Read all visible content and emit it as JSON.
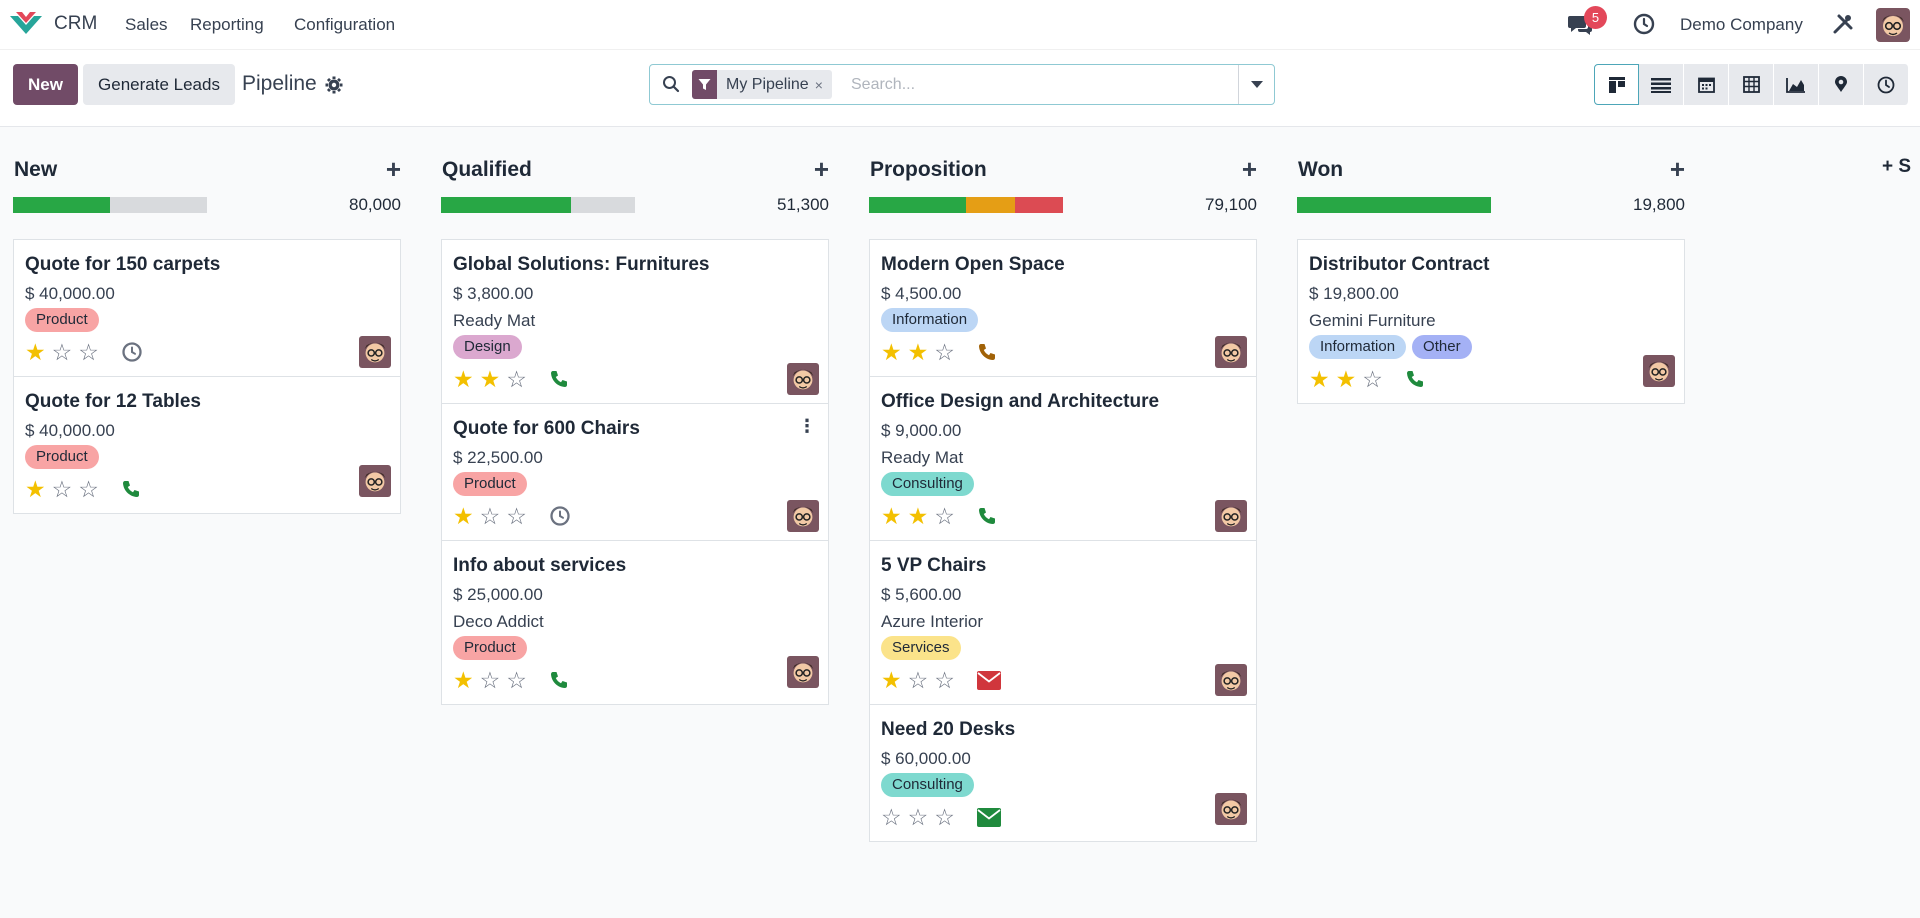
{
  "navbar": {
    "app_name": "CRM",
    "menu": [
      "Sales",
      "Reporting",
      "Configuration"
    ],
    "chat_count": "5",
    "company": "Demo Company"
  },
  "control": {
    "new_label": "New",
    "generate_label": "Generate Leads",
    "breadcrumb": "Pipeline",
    "facet": "My Pipeline",
    "facet_remove": "×",
    "search_placeholder": "Search..."
  },
  "colors": {
    "primary": "#714b67",
    "green": "#28a745",
    "orange": "#e59e15",
    "red": "#dc4b53"
  },
  "stages": [
    {
      "name": "New",
      "total": "80,000",
      "progress": [
        {
          "color": "#28a745",
          "pct": 50
        }
      ],
      "cards": [
        {
          "title": "Quote for 150 carpets",
          "amount": "$ 40,000.00",
          "company": "",
          "tags": [
            {
              "label": "Product",
              "color": "#f8a4a4"
            }
          ],
          "stars": 1,
          "activity": "clock-icon",
          "activity_color": "#6b7280"
        },
        {
          "title": "Quote for 12 Tables",
          "amount": "$ 40,000.00",
          "company": "",
          "tags": [
            {
              "label": "Product",
              "color": "#f8a4a4"
            }
          ],
          "stars": 1,
          "activity": "phone-icon",
          "activity_color": "#1f8a3d"
        }
      ]
    },
    {
      "name": "Qualified",
      "total": "51,300",
      "progress": [
        {
          "color": "#28a745",
          "pct": 67
        }
      ],
      "cards": [
        {
          "title": "Global Solutions: Furnitures",
          "amount": "$ 3,800.00",
          "company": "Ready Mat",
          "tags": [
            {
              "label": "Design",
              "color": "#dba8cf"
            }
          ],
          "stars": 2,
          "activity": "phone-icon",
          "activity_color": "#1f8a3d"
        },
        {
          "title": "Quote for 600 Chairs",
          "amount": "$ 22,500.00",
          "company": "",
          "tags": [
            {
              "label": "Product",
              "color": "#f8a4a4"
            }
          ],
          "stars": 1,
          "activity": "clock-icon",
          "activity_color": "#6b7280",
          "menu": true
        },
        {
          "title": "Info about services",
          "amount": "$ 25,000.00",
          "company": "Deco Addict",
          "tags": [
            {
              "label": "Product",
              "color": "#f8a4a4"
            }
          ],
          "stars": 1,
          "activity": "phone-icon",
          "activity_color": "#1f8a3d"
        }
      ]
    },
    {
      "name": "Proposition",
      "total": "79,100",
      "progress": [
        {
          "color": "#28a745",
          "pct": 50
        },
        {
          "color": "#e59e15",
          "pct": 25
        },
        {
          "color": "#dc4b53",
          "pct": 25
        }
      ],
      "cards": [
        {
          "title": "Modern Open Space",
          "amount": "$ 4,500.00",
          "company": "",
          "tags": [
            {
              "label": "Information",
              "color": "#bcd6f5"
            }
          ],
          "stars": 2,
          "activity": "phone-icon",
          "activity_color": "#a16207"
        },
        {
          "title": "Office Design and Architecture",
          "amount": "$ 9,000.00",
          "company": "Ready Mat",
          "tags": [
            {
              "label": "Consulting",
              "color": "#7ed9cf"
            }
          ],
          "stars": 2,
          "activity": "phone-icon",
          "activity_color": "#1f8a3d"
        },
        {
          "title": "5 VP Chairs",
          "amount": "$ 5,600.00",
          "company": "Azure Interior",
          "tags": [
            {
              "label": "Services",
              "color": "#fbe38a"
            }
          ],
          "stars": 1,
          "activity": "envelope-icon",
          "activity_color": "#d0363c"
        },
        {
          "title": "Need 20 Desks",
          "amount": "$ 60,000.00",
          "company": "",
          "tags": [
            {
              "label": "Consulting",
              "color": "#7ed9cf"
            }
          ],
          "stars": 0,
          "activity": "envelope-icon",
          "activity_color": "#1f8a3d"
        }
      ]
    },
    {
      "name": "Won",
      "total": "19,800",
      "progress": [
        {
          "color": "#28a745",
          "pct": 100
        }
      ],
      "cards": [
        {
          "title": "Distributor Contract",
          "amount": "$ 19,800.00",
          "company": "Gemini Furniture",
          "tags": [
            {
              "label": "Information",
              "color": "#bcd6f5"
            },
            {
              "label": "Other",
              "color": "#a4b1f5"
            }
          ],
          "stars": 2,
          "activity": "phone-icon",
          "activity_color": "#1f8a3d"
        }
      ]
    }
  ],
  "add_stage_label": "S"
}
